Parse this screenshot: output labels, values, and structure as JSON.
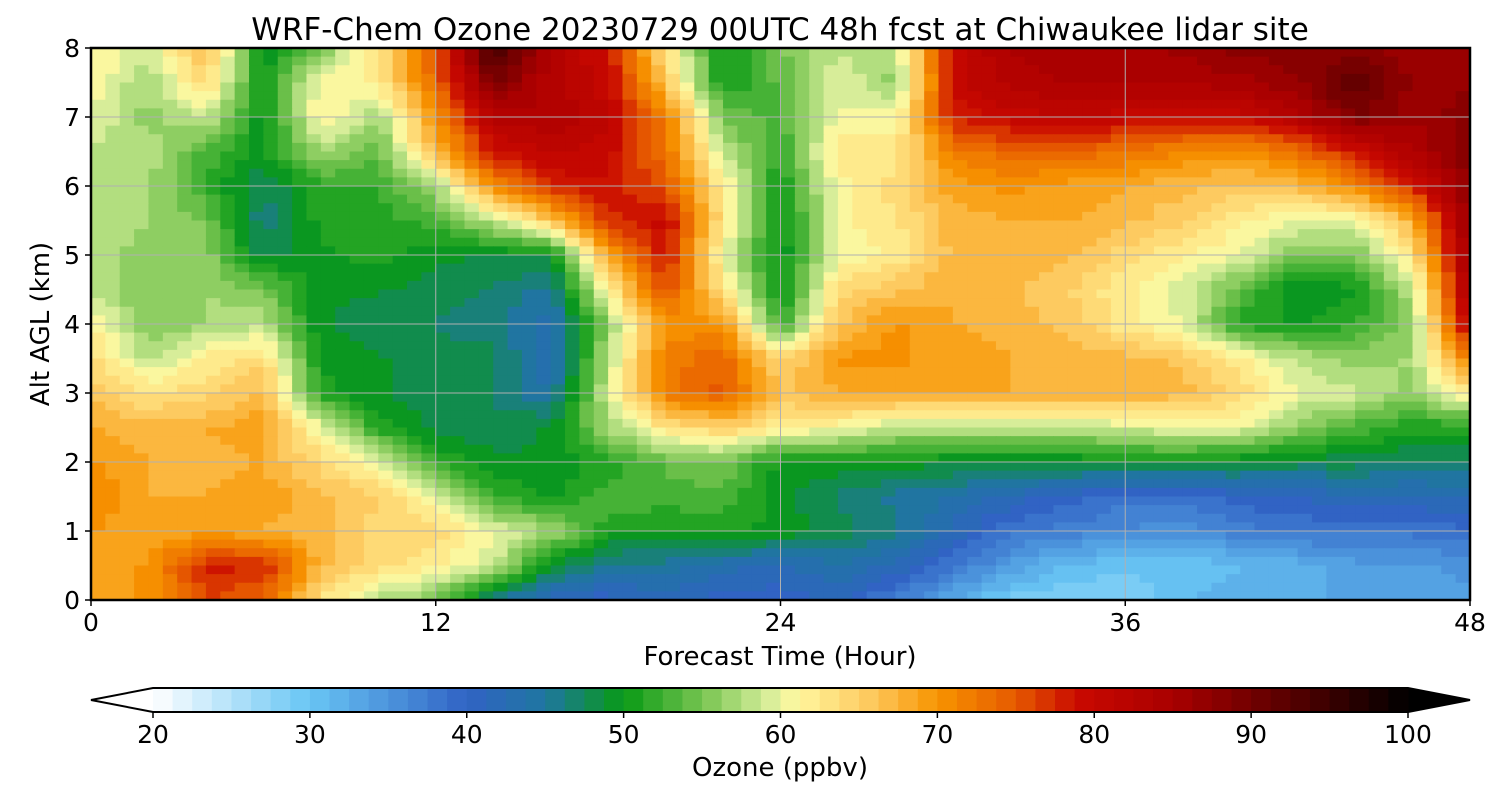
{
  "chart_data": {
    "type": "heatmap",
    "title": "WRF-Chem Ozone  20230729 00UTC 48h fcst at Chiwaukee lidar site",
    "xlabel": "Forecast Time (Hour)",
    "ylabel": "Alt AGL (km)",
    "xlim": [
      0,
      48
    ],
    "ylim": [
      0,
      8
    ],
    "xticks": [
      "0",
      "12",
      "24",
      "36",
      "48"
    ],
    "yticks": [
      "0",
      "1",
      "2",
      "3",
      "4",
      "5",
      "6",
      "7",
      "8"
    ],
    "grid": true,
    "x": [
      0,
      2,
      4,
      6,
      8,
      10,
      12,
      14,
      16,
      18,
      20,
      22,
      24,
      26,
      28,
      30,
      32,
      34,
      36,
      38,
      40,
      42,
      44,
      46,
      48
    ],
    "y": [
      0,
      0.5,
      1,
      1.5,
      2,
      2.5,
      3,
      3.5,
      4,
      4.5,
      5,
      5.5,
      6,
      6.5,
      7,
      7.5,
      8
    ],
    "z": [
      [
        69,
        70,
        76,
        74,
        63,
        58,
        55,
        46,
        41,
        40,
        42,
        40,
        40,
        41,
        37,
        33,
        29,
        28,
        28,
        31,
        32,
        31,
        34,
        33,
        34
      ],
      [
        68,
        70,
        78,
        78,
        67,
        64,
        62,
        59,
        49,
        45,
        45,
        43,
        42,
        44,
        42,
        38,
        34,
        31,
        30,
        30,
        31,
        32,
        34,
        34,
        35
      ],
      [
        70,
        68,
        69,
        68,
        67,
        64,
        64,
        60,
        57,
        51,
        50,
        51,
        50,
        48,
        46,
        42,
        38,
        37,
        36,
        35,
        37,
        38,
        38,
        38,
        39
      ],
      [
        71,
        68,
        68,
        69,
        67,
        65,
        60,
        52,
        50,
        53,
        53,
        53,
        49,
        47,
        45,
        44,
        42,
        40,
        38,
        38,
        40,
        41,
        42,
        42,
        43
      ],
      [
        70,
        68,
        67,
        68,
        64,
        60,
        52,
        49,
        49,
        51,
        54,
        55,
        50,
        50,
        50,
        49,
        49,
        49,
        50,
        50,
        49,
        48,
        48,
        47,
        47
      ],
      [
        68,
        67,
        68,
        69,
        60,
        51,
        48,
        48,
        49,
        57,
        63,
        65,
        62,
        61,
        58,
        58,
        58,
        58,
        59,
        60,
        60,
        56,
        53,
        51,
        51
      ],
      [
        66,
        63,
        64,
        67,
        51,
        49,
        48,
        47,
        44,
        59,
        72,
        75,
        66,
        68,
        69,
        68,
        68,
        68,
        68,
        67,
        64,
        60,
        59,
        56,
        63
      ],
      [
        64,
        58,
        62,
        64,
        50,
        49,
        48,
        48,
        42,
        58,
        72,
        74,
        64,
        70,
        70,
        69,
        68,
        67,
        67,
        66,
        62,
        58,
        56,
        57,
        72
      ],
      [
        62,
        55,
        57,
        58,
        49,
        48,
        47,
        46,
        43,
        56,
        70,
        70,
        52,
        66,
        70,
        68,
        67,
        66,
        62,
        60,
        51,
        50,
        52,
        56,
        82
      ],
      [
        58,
        55,
        57,
        55,
        49,
        49,
        48,
        47,
        45,
        62,
        76,
        63,
        49,
        64,
        66,
        68,
        67,
        65,
        62,
        59,
        54,
        49,
        50,
        58,
        85
      ],
      [
        58,
        56,
        56,
        48,
        50,
        51,
        49,
        49,
        49,
        69,
        79,
        60,
        49,
        60,
        62,
        67,
        67,
        67,
        64,
        62,
        60,
        55,
        55,
        63,
        86
      ],
      [
        57,
        57,
        55,
        46,
        51,
        51,
        53,
        58,
        66,
        77,
        80,
        63,
        49,
        61,
        63,
        67,
        68,
        68,
        67,
        65,
        62,
        60,
        60,
        68,
        87
      ],
      [
        57,
        57,
        52,
        47,
        52,
        52,
        57,
        71,
        78,
        79,
        75,
        62,
        50,
        61,
        64,
        69,
        70,
        69,
        68,
        67,
        66,
        67,
        71,
        78,
        88
      ],
      [
        58,
        58,
        53,
        50,
        57,
        54,
        67,
        79,
        81,
        80,
        73,
        58,
        52,
        63,
        62,
        72,
        74,
        74,
        73,
        71,
        70,
        73,
        79,
        84,
        88
      ],
      [
        60,
        56,
        59,
        49,
        62,
        57,
        70,
        83,
        84,
        81,
        72,
        55,
        53,
        60,
        61,
        78,
        80,
        81,
        80,
        80,
        80,
        83,
        89,
        86,
        88
      ],
      [
        61,
        57,
        64,
        50,
        61,
        62,
        74,
        89,
        83,
        80,
        66,
        50,
        54,
        60,
        56,
        80,
        83,
        84,
        84,
        84,
        85,
        87,
        92,
        87,
        87
      ],
      [
        62,
        59,
        67,
        49,
        55,
        63,
        75,
        95,
        83,
        79,
        63,
        50,
        55,
        58,
        58,
        80,
        84,
        85,
        85,
        86,
        88,
        88,
        88,
        86,
        87
      ]
    ],
    "colorbar": {
      "label": "Ozone  (ppbv)",
      "min": 20,
      "max": 100,
      "ticks": [
        "20",
        "30",
        "40",
        "50",
        "60",
        "70",
        "80",
        "90",
        "100"
      ],
      "extend": "both"
    },
    "colormap_stops": [
      [
        20,
        "#ffffff"
      ],
      [
        30,
        "#68c5f4"
      ],
      [
        40,
        "#3163c4"
      ],
      [
        45,
        "#1f76a0"
      ],
      [
        50,
        "#089a15"
      ],
      [
        55,
        "#77c450"
      ],
      [
        59,
        "#d2ec98"
      ],
      [
        61,
        "#fff8a0"
      ],
      [
        66,
        "#fdc65a"
      ],
      [
        70,
        "#f79400"
      ],
      [
        75,
        "#e65a00"
      ],
      [
        79,
        "#c90800"
      ],
      [
        85,
        "#a90000"
      ],
      [
        92,
        "#5c0000"
      ],
      [
        100,
        "#000000"
      ]
    ]
  }
}
